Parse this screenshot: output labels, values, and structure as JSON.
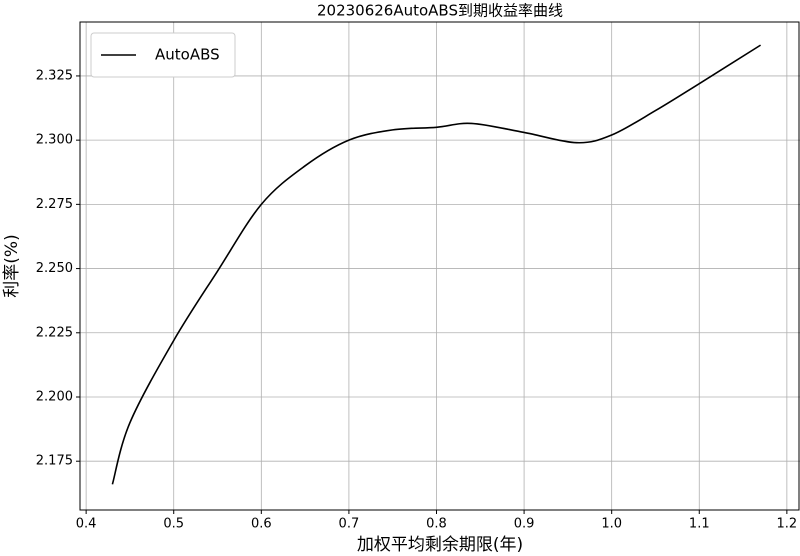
{
  "chart_data": {
    "type": "line",
    "title": "20230626AutoABS到期收益率曲线",
    "x_label": "加权平均剩余期限(年)",
    "y_label": "利率(%)",
    "series": [
      {
        "name": "AutoABS",
        "color": "#000000",
        "x": [
          0.43,
          0.45,
          0.5,
          0.55,
          0.6,
          0.65,
          0.7,
          0.75,
          0.8,
          0.84,
          0.9,
          0.96,
          1.0,
          1.05,
          1.1,
          1.17
        ],
        "values": [
          2.166,
          2.19,
          2.222,
          2.249,
          2.275,
          2.29,
          2.3,
          2.304,
          2.305,
          2.3065,
          2.303,
          2.299,
          2.302,
          2.3115,
          2.322,
          2.337
        ]
      }
    ],
    "xlim": [
      0.393,
      1.215
    ],
    "ylim": [
      2.156,
      2.346
    ],
    "xticks": [
      0.4,
      0.5,
      0.6,
      0.7,
      0.8,
      0.9,
      {
        "value": 1,
        "label": "1.0"
      },
      1.1,
      1.2
    ],
    "yticks": [
      2.175,
      {
        "value": 2.2,
        "label": "2.200"
      },
      2.225,
      {
        "value": 2.25,
        "label": "2.250"
      },
      2.275,
      {
        "value": 2.3,
        "label": "2.300"
      },
      2.325
    ],
    "grid": true,
    "legend": "upper-left"
  }
}
